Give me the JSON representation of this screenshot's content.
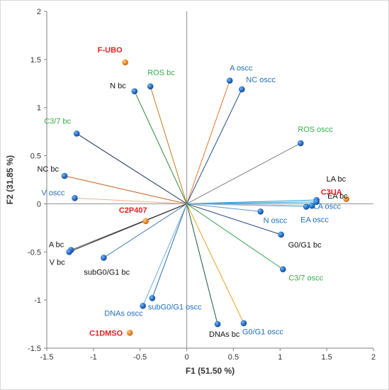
{
  "chart_data": {
    "type": "scatter",
    "xlabel": "F1 (51.50 %)",
    "ylabel": "F2 (31.85 %)",
    "xlim": [
      -1.5,
      2
    ],
    "ylim": [
      -1.5,
      2
    ],
    "x_ticks": [
      "-1.5",
      "-1",
      "-0.5",
      "0",
      "0.5",
      "1",
      "1.5",
      "2"
    ],
    "y_ticks": [
      "-1.5",
      "-1",
      "-0.5",
      "0",
      "0.5",
      "1",
      "1.5",
      "2"
    ],
    "grid": false,
    "label_colors": {
      "black": "#111111",
      "green": "#2db34a",
      "blue": "#1f6fb5",
      "red": "#e01f1f"
    },
    "variables": [
      {
        "name": "F-UBO",
        "x": -0.66,
        "y": 1.47,
        "marker": "orange",
        "line": "none",
        "label_color": "red",
        "anchor": "end",
        "dx": -4,
        "dy": -14
      },
      {
        "name": "ROS bc",
        "x": -0.39,
        "y": 1.22,
        "marker": "blue",
        "line": "#c07a1a",
        "label_color": "green",
        "anchor": "start",
        "dx": -4,
        "dy": -16
      },
      {
        "name": "N bc",
        "x": -0.56,
        "y": 1.17,
        "marker": "blue",
        "line": "#2e8b3a",
        "label_color": "black",
        "anchor": "end",
        "dx": -12,
        "dy": -4
      },
      {
        "name": "A oscc",
        "x": 0.46,
        "y": 1.28,
        "marker": "blue",
        "line": "#e8742a",
        "label_color": "blue",
        "anchor": "start",
        "dx": 0,
        "dy": -14
      },
      {
        "name": "NC oscc",
        "x": 0.59,
        "y": 1.19,
        "marker": "blue",
        "line": "#1f4e8c",
        "label_color": "blue",
        "anchor": "start",
        "dx": 6,
        "dy": -10
      },
      {
        "name": "C3/7 bc",
        "x": -1.18,
        "y": 0.73,
        "marker": "blue",
        "line": "#1a2f5a",
        "label_color": "green",
        "anchor": "end",
        "dx": -8,
        "dy": -14
      },
      {
        "name": "ROS oscc",
        "x": 1.22,
        "y": 0.63,
        "marker": "blue",
        "line": "#7f7f7f",
        "label_color": "green",
        "anchor": "start",
        "dx": -4,
        "dy": -16
      },
      {
        "name": "NC bc",
        "x": -1.31,
        "y": 0.29,
        "marker": "blue",
        "line": "#c05a1a",
        "label_color": "black",
        "anchor": "end",
        "dx": -8,
        "dy": -6
      },
      {
        "name": "V oscc",
        "x": -1.2,
        "y": 0.06,
        "marker": "blue",
        "line": "#f0b08a",
        "label_color": "blue",
        "anchor": "end",
        "dx": -14,
        "dy": -4
      },
      {
        "name": "LA bc",
        "x": 1.39,
        "y": 0.04,
        "marker": "blue",
        "line": "#2e9bd6",
        "label_color": "black",
        "anchor": "start",
        "dx": 14,
        "dy": -26
      },
      {
        "name": "EA bc",
        "x": 1.34,
        "y": -0.02,
        "marker": "blue",
        "line": "#8fb7de",
        "label_color": "black",
        "anchor": "start",
        "dx": 22,
        "dy": -10
      },
      {
        "name": "C3UA",
        "x": 1.71,
        "y": 0.05,
        "marker": "orange",
        "line": "none",
        "label_color": "red",
        "anchor": "start",
        "dx": -36,
        "dy": -6
      },
      {
        "name": "LA oscc",
        "x": 1.39,
        "y": 0.02,
        "marker": "blue",
        "line": "#2e9bd6",
        "label_color": "blue",
        "anchor": "start",
        "dx": -4,
        "dy": 10
      },
      {
        "name": "EA oscc",
        "x": 1.28,
        "y": -0.03,
        "marker": "blue",
        "line": "#8fb7de",
        "label_color": "blue",
        "anchor": "start",
        "dx": -8,
        "dy": 22
      },
      {
        "name": "N oscc",
        "x": 0.79,
        "y": -0.08,
        "marker": "blue",
        "line": "#5b9bd5",
        "label_color": "blue",
        "anchor": "start",
        "dx": 4,
        "dy": 16
      },
      {
        "name": "C2P407",
        "x": -0.44,
        "y": -0.18,
        "marker": "orange",
        "line": "none",
        "label_color": "red",
        "anchor": "end",
        "dx": 2,
        "dy": -12
      },
      {
        "name": "G0/G1 bc",
        "x": 1.01,
        "y": -0.32,
        "marker": "blue",
        "line": "#1a3a6b",
        "label_color": "black",
        "anchor": "start",
        "dx": 10,
        "dy": 18
      },
      {
        "name": "A bc",
        "x": -1.24,
        "y": -0.48,
        "marker": "blue",
        "line": "#595959",
        "label_color": "black",
        "anchor": "end",
        "dx": -10,
        "dy": -4
      },
      {
        "name": "V bc",
        "x": -1.26,
        "y": -0.5,
        "marker": "blue",
        "line": "#262626",
        "label_color": "black",
        "anchor": "end",
        "dx": -6,
        "dy": 18
      },
      {
        "name": "subG0/G1 bc",
        "x": -0.89,
        "y": -0.56,
        "marker": "blue",
        "line": "#4a7fb5",
        "label_color": "black",
        "anchor": "start",
        "dx": -28,
        "dy": 24
      },
      {
        "name": "C3/7 oscc",
        "x": 1.03,
        "y": -0.68,
        "marker": "blue",
        "line": "#3aa654",
        "label_color": "green",
        "anchor": "start",
        "dx": 8,
        "dy": 16
      },
      {
        "name": "subG0/G1 oscc",
        "x": -0.37,
        "y": -0.98,
        "marker": "blue",
        "line": "#2a6db5",
        "label_color": "blue",
        "anchor": "start",
        "dx": -6,
        "dy": 16
      },
      {
        "name": "DNAs oscc",
        "x": -0.47,
        "y": -1.06,
        "marker": "blue",
        "line": "#6baed6",
        "label_color": "blue",
        "anchor": "end",
        "dx": 0,
        "dy": 14
      },
      {
        "name": "DNAs bc",
        "x": 0.33,
        "y": -1.25,
        "marker": "blue",
        "line": "#1a5c34",
        "label_color": "black",
        "anchor": "start",
        "dx": -12,
        "dy": 18
      },
      {
        "name": "G0/G1 oscc",
        "x": 0.61,
        "y": -1.24,
        "marker": "blue",
        "line": "#e8a020",
        "label_color": "blue",
        "anchor": "start",
        "dx": -2,
        "dy": 16
      },
      {
        "name": "C1DMSO",
        "x": -0.61,
        "y": -1.34,
        "marker": "orange",
        "line": "none",
        "label_color": "red",
        "anchor": "end",
        "dx": -10,
        "dy": 4
      }
    ]
  }
}
